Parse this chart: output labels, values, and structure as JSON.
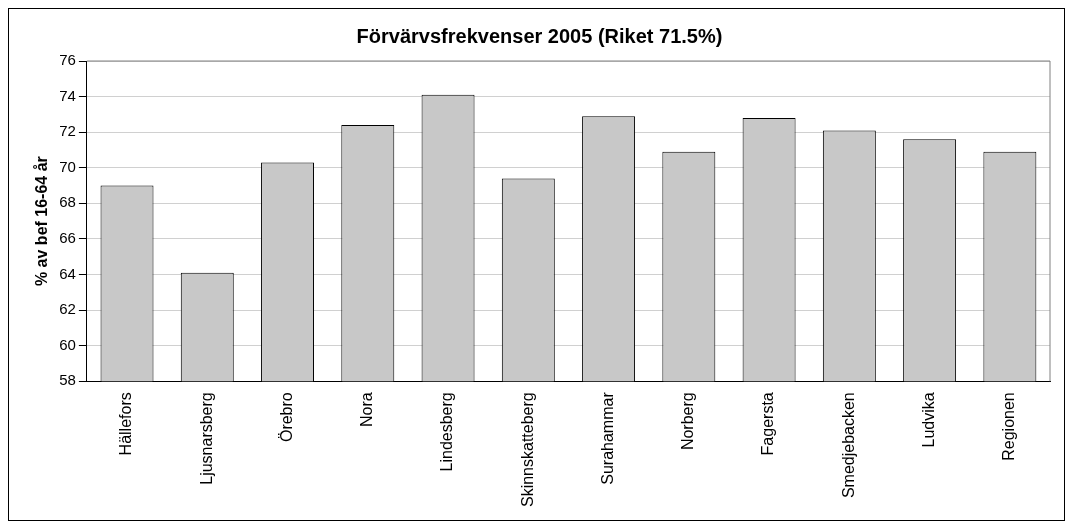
{
  "chart_data": {
    "type": "bar",
    "title": "Förvärvsfrekvenser 2005 (Riket 71.5%)",
    "ylabel": "% av bef 16-64 år",
    "categories": [
      "Hällefors",
      "Ljusnarsberg",
      "Örebro",
      "Nora",
      "Lindesberg",
      "Skinnskatteberg",
      "Surahammar",
      "Norberg",
      "Fagersta",
      "Smedjebacken",
      "Ludvika",
      "Regionen"
    ],
    "values": [
      69.0,
      64.1,
      70.3,
      72.4,
      74.1,
      69.4,
      72.9,
      70.9,
      72.8,
      72.1,
      71.6,
      70.9
    ],
    "color": "#c8c8c8",
    "ylim": [
      58,
      76
    ],
    "yticks": [
      58,
      60,
      62,
      64,
      66,
      68,
      70,
      72,
      74,
      76
    ],
    "grid": "y",
    "legend": false
  }
}
